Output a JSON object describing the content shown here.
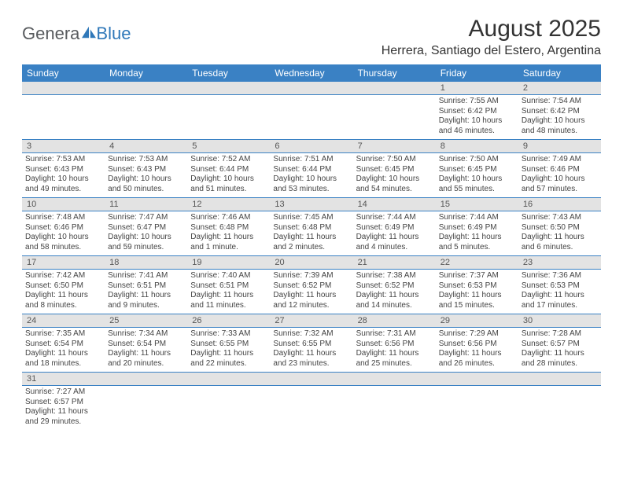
{
  "logo": {
    "part1": "Genera",
    "part2": "Blue"
  },
  "title": "August 2025",
  "location": "Herrera, Santiago del Estero, Argentina",
  "colors": {
    "header_bg": "#3a81c4",
    "header_text": "#ffffff",
    "daynum_bg": "#e3e3e3",
    "border": "#3a81c4",
    "logo_gray": "#585b5e",
    "logo_blue": "#2f78b9"
  },
  "dayNames": [
    "Sunday",
    "Monday",
    "Tuesday",
    "Wednesday",
    "Thursday",
    "Friday",
    "Saturday"
  ],
  "weeks": [
    [
      null,
      null,
      null,
      null,
      null,
      {
        "n": "1",
        "sr": "Sunrise: 7:55 AM",
        "ss": "Sunset: 6:42 PM",
        "dl": "Daylight: 10 hours and 46 minutes."
      },
      {
        "n": "2",
        "sr": "Sunrise: 7:54 AM",
        "ss": "Sunset: 6:42 PM",
        "dl": "Daylight: 10 hours and 48 minutes."
      }
    ],
    [
      {
        "n": "3",
        "sr": "Sunrise: 7:53 AM",
        "ss": "Sunset: 6:43 PM",
        "dl": "Daylight: 10 hours and 49 minutes."
      },
      {
        "n": "4",
        "sr": "Sunrise: 7:53 AM",
        "ss": "Sunset: 6:43 PM",
        "dl": "Daylight: 10 hours and 50 minutes."
      },
      {
        "n": "5",
        "sr": "Sunrise: 7:52 AM",
        "ss": "Sunset: 6:44 PM",
        "dl": "Daylight: 10 hours and 51 minutes."
      },
      {
        "n": "6",
        "sr": "Sunrise: 7:51 AM",
        "ss": "Sunset: 6:44 PM",
        "dl": "Daylight: 10 hours and 53 minutes."
      },
      {
        "n": "7",
        "sr": "Sunrise: 7:50 AM",
        "ss": "Sunset: 6:45 PM",
        "dl": "Daylight: 10 hours and 54 minutes."
      },
      {
        "n": "8",
        "sr": "Sunrise: 7:50 AM",
        "ss": "Sunset: 6:45 PM",
        "dl": "Daylight: 10 hours and 55 minutes."
      },
      {
        "n": "9",
        "sr": "Sunrise: 7:49 AM",
        "ss": "Sunset: 6:46 PM",
        "dl": "Daylight: 10 hours and 57 minutes."
      }
    ],
    [
      {
        "n": "10",
        "sr": "Sunrise: 7:48 AM",
        "ss": "Sunset: 6:46 PM",
        "dl": "Daylight: 10 hours and 58 minutes."
      },
      {
        "n": "11",
        "sr": "Sunrise: 7:47 AM",
        "ss": "Sunset: 6:47 PM",
        "dl": "Daylight: 10 hours and 59 minutes."
      },
      {
        "n": "12",
        "sr": "Sunrise: 7:46 AM",
        "ss": "Sunset: 6:48 PM",
        "dl": "Daylight: 11 hours and 1 minute."
      },
      {
        "n": "13",
        "sr": "Sunrise: 7:45 AM",
        "ss": "Sunset: 6:48 PM",
        "dl": "Daylight: 11 hours and 2 minutes."
      },
      {
        "n": "14",
        "sr": "Sunrise: 7:44 AM",
        "ss": "Sunset: 6:49 PM",
        "dl": "Daylight: 11 hours and 4 minutes."
      },
      {
        "n": "15",
        "sr": "Sunrise: 7:44 AM",
        "ss": "Sunset: 6:49 PM",
        "dl": "Daylight: 11 hours and 5 minutes."
      },
      {
        "n": "16",
        "sr": "Sunrise: 7:43 AM",
        "ss": "Sunset: 6:50 PM",
        "dl": "Daylight: 11 hours and 6 minutes."
      }
    ],
    [
      {
        "n": "17",
        "sr": "Sunrise: 7:42 AM",
        "ss": "Sunset: 6:50 PM",
        "dl": "Daylight: 11 hours and 8 minutes."
      },
      {
        "n": "18",
        "sr": "Sunrise: 7:41 AM",
        "ss": "Sunset: 6:51 PM",
        "dl": "Daylight: 11 hours and 9 minutes."
      },
      {
        "n": "19",
        "sr": "Sunrise: 7:40 AM",
        "ss": "Sunset: 6:51 PM",
        "dl": "Daylight: 11 hours and 11 minutes."
      },
      {
        "n": "20",
        "sr": "Sunrise: 7:39 AM",
        "ss": "Sunset: 6:52 PM",
        "dl": "Daylight: 11 hours and 12 minutes."
      },
      {
        "n": "21",
        "sr": "Sunrise: 7:38 AM",
        "ss": "Sunset: 6:52 PM",
        "dl": "Daylight: 11 hours and 14 minutes."
      },
      {
        "n": "22",
        "sr": "Sunrise: 7:37 AM",
        "ss": "Sunset: 6:53 PM",
        "dl": "Daylight: 11 hours and 15 minutes."
      },
      {
        "n": "23",
        "sr": "Sunrise: 7:36 AM",
        "ss": "Sunset: 6:53 PM",
        "dl": "Daylight: 11 hours and 17 minutes."
      }
    ],
    [
      {
        "n": "24",
        "sr": "Sunrise: 7:35 AM",
        "ss": "Sunset: 6:54 PM",
        "dl": "Daylight: 11 hours and 18 minutes."
      },
      {
        "n": "25",
        "sr": "Sunrise: 7:34 AM",
        "ss": "Sunset: 6:54 PM",
        "dl": "Daylight: 11 hours and 20 minutes."
      },
      {
        "n": "26",
        "sr": "Sunrise: 7:33 AM",
        "ss": "Sunset: 6:55 PM",
        "dl": "Daylight: 11 hours and 22 minutes."
      },
      {
        "n": "27",
        "sr": "Sunrise: 7:32 AM",
        "ss": "Sunset: 6:55 PM",
        "dl": "Daylight: 11 hours and 23 minutes."
      },
      {
        "n": "28",
        "sr": "Sunrise: 7:31 AM",
        "ss": "Sunset: 6:56 PM",
        "dl": "Daylight: 11 hours and 25 minutes."
      },
      {
        "n": "29",
        "sr": "Sunrise: 7:29 AM",
        "ss": "Sunset: 6:56 PM",
        "dl": "Daylight: 11 hours and 26 minutes."
      },
      {
        "n": "30",
        "sr": "Sunrise: 7:28 AM",
        "ss": "Sunset: 6:57 PM",
        "dl": "Daylight: 11 hours and 28 minutes."
      }
    ],
    [
      {
        "n": "31",
        "sr": "Sunrise: 7:27 AM",
        "ss": "Sunset: 6:57 PM",
        "dl": "Daylight: 11 hours and 29 minutes."
      },
      null,
      null,
      null,
      null,
      null,
      null
    ]
  ]
}
